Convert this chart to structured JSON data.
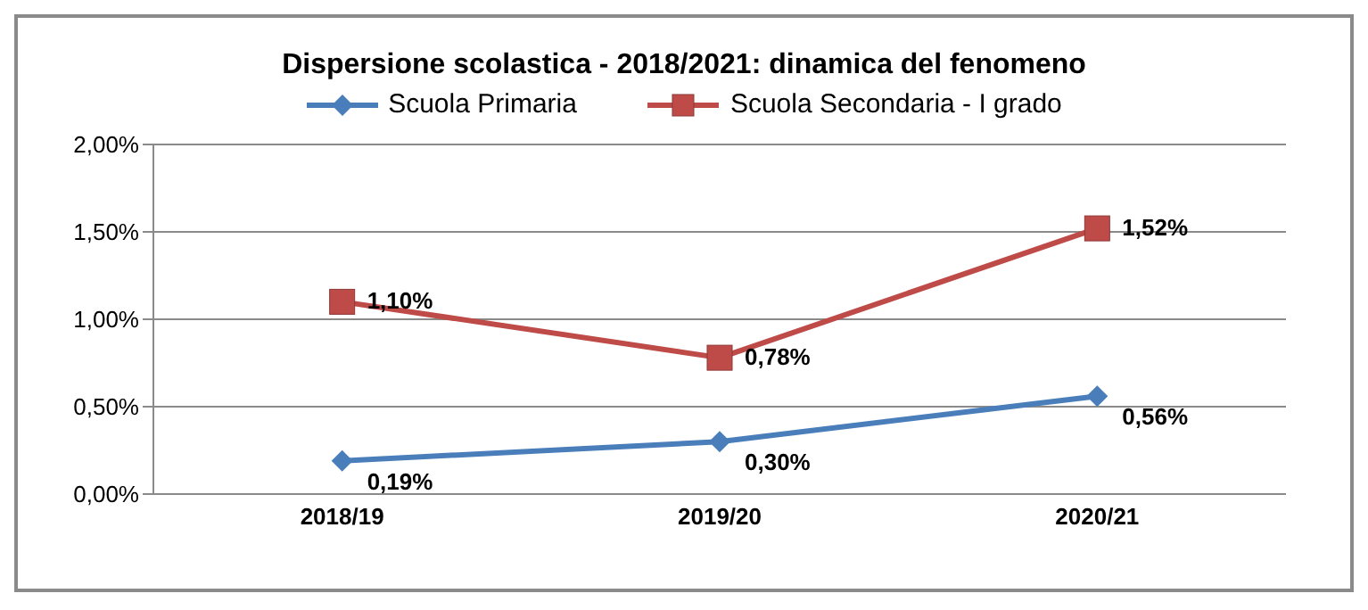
{
  "chart_data": {
    "type": "line",
    "title": "Dispersione scolastica - 2018/2021: dinamica del fenomeno",
    "categories": [
      "2018/19",
      "2019/20",
      "2020/21"
    ],
    "series": [
      {
        "name": "Scuola Primaria",
        "color": "#4a7ebb",
        "marker": "diamond",
        "values": [
          0.19,
          0.3,
          0.56
        ],
        "value_labels": [
          "0,19%",
          "0,30%",
          "0,56%"
        ]
      },
      {
        "name": "Scuola Secondaria - I grado",
        "color": "#be4b48",
        "marker": "square",
        "values": [
          1.1,
          0.78,
          1.52
        ],
        "value_labels": [
          "1,10%",
          "0,78%",
          "1,52%"
        ]
      }
    ],
    "ylim": [
      0,
      2
    ],
    "yticks": [
      {
        "value": 0,
        "label": "0,00%"
      },
      {
        "value": 0.5,
        "label": "0,50%"
      },
      {
        "value": 1,
        "label": "1,00%"
      },
      {
        "value": 1.5,
        "label": "1,50%"
      },
      {
        "value": 2,
        "label": "2,00%"
      }
    ],
    "grid": "y",
    "legend": "top",
    "line_style": "solid"
  }
}
